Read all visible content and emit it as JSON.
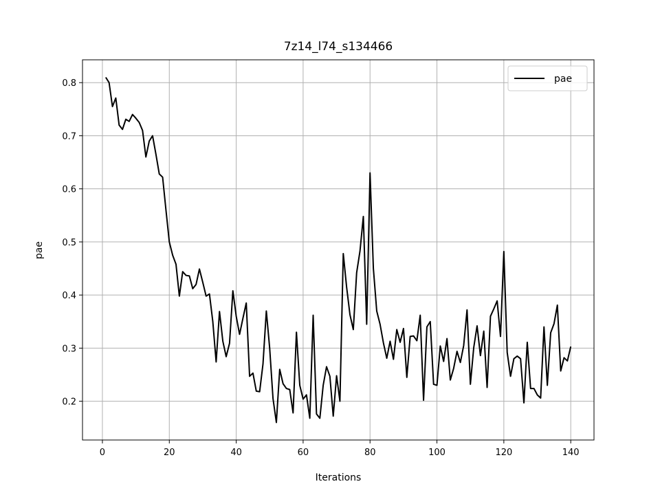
{
  "chart_data": {
    "type": "line",
    "title": "7z14_l74_s134466",
    "xlabel": "Iterations",
    "ylabel": "pae",
    "xlim": [
      -5.95,
      146.95
    ],
    "ylim": [
      0.127,
      0.843
    ],
    "xticks": [
      0,
      20,
      40,
      60,
      80,
      100,
      120,
      140
    ],
    "yticks": [
      0.2,
      0.3,
      0.4,
      0.5,
      0.6,
      0.7,
      0.8
    ],
    "xtick_labels": [
      "0",
      "20",
      "40",
      "60",
      "80",
      "100",
      "120",
      "140"
    ],
    "ytick_labels": [
      "0.2",
      "0.3",
      "0.4",
      "0.5",
      "0.6",
      "0.7",
      "0.8"
    ],
    "grid": true,
    "legend_position": "top-right",
    "series": [
      {
        "name": "pae",
        "color": "#000000",
        "x": [
          1,
          2,
          3,
          4,
          5,
          6,
          7,
          8,
          9,
          10,
          11,
          12,
          13,
          14,
          15,
          16,
          17,
          18,
          19,
          20,
          21,
          22,
          23,
          24,
          25,
          26,
          27,
          28,
          29,
          30,
          31,
          32,
          33,
          34,
          35,
          36,
          37,
          38,
          39,
          40,
          41,
          42,
          43,
          44,
          45,
          46,
          47,
          48,
          49,
          50,
          51,
          52,
          53,
          54,
          55,
          56,
          57,
          58,
          59,
          60,
          61,
          62,
          63,
          64,
          65,
          66,
          67,
          68,
          69,
          70,
          71,
          72,
          73,
          74,
          75,
          76,
          77,
          78,
          79,
          80,
          81,
          82,
          83,
          84,
          85,
          86,
          87,
          88,
          89,
          90,
          91,
          92,
          93,
          94,
          95,
          96,
          97,
          98,
          99,
          100,
          101,
          102,
          103,
          104,
          105,
          106,
          107,
          108,
          109,
          110,
          111,
          112,
          113,
          114,
          115,
          116,
          117,
          118,
          119,
          120,
          121,
          122,
          123,
          124,
          125,
          126,
          127,
          128,
          129,
          130,
          131,
          132,
          133,
          134,
          135,
          136,
          137,
          138,
          139,
          140
        ],
        "y": [
          0.81,
          0.8,
          0.755,
          0.771,
          0.72,
          0.712,
          0.731,
          0.727,
          0.74,
          0.733,
          0.725,
          0.71,
          0.66,
          0.69,
          0.7,
          0.665,
          0.628,
          0.622,
          0.56,
          0.5,
          0.475,
          0.458,
          0.398,
          0.444,
          0.437,
          0.436,
          0.412,
          0.42,
          0.449,
          0.424,
          0.398,
          0.402,
          0.35,
          0.274,
          0.369,
          0.313,
          0.284,
          0.309,
          0.408,
          0.36,
          0.326,
          0.356,
          0.385,
          0.247,
          0.253,
          0.219,
          0.218,
          0.27,
          0.37,
          0.3,
          0.205,
          0.16,
          0.26,
          0.233,
          0.224,
          0.222,
          0.178,
          0.33,
          0.23,
          0.204,
          0.212,
          0.168,
          0.362,
          0.176,
          0.168,
          0.23,
          0.265,
          0.247,
          0.172,
          0.248,
          0.2,
          0.478,
          0.415,
          0.363,
          0.335,
          0.442,
          0.483,
          0.548,
          0.345,
          0.63,
          0.45,
          0.37,
          0.345,
          0.31,
          0.281,
          0.313,
          0.279,
          0.335,
          0.311,
          0.337,
          0.245,
          0.322,
          0.323,
          0.314,
          0.362,
          0.202,
          0.34,
          0.35,
          0.232,
          0.23,
          0.304,
          0.275,
          0.318,
          0.24,
          0.262,
          0.294,
          0.273,
          0.305,
          0.372,
          0.232,
          0.301,
          0.342,
          0.286,
          0.332,
          0.226,
          0.36,
          0.374,
          0.389,
          0.322,
          0.482,
          0.292,
          0.247,
          0.28,
          0.285,
          0.28,
          0.197,
          0.311,
          0.224,
          0.224,
          0.212,
          0.206,
          0.34,
          0.23,
          0.329,
          0.346,
          0.381,
          0.257,
          0.282,
          0.276,
          0.303
        ]
      }
    ]
  }
}
